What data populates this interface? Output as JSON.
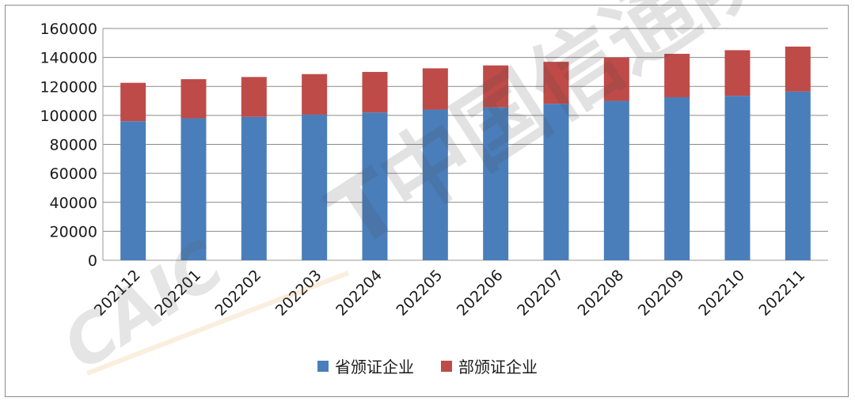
{
  "chart_data": {
    "type": "bar",
    "stacked": true,
    "categories": [
      "202112",
      "202201",
      "202202",
      "202203",
      "202204",
      "202205",
      "202206",
      "202207",
      "202208",
      "202209",
      "202210",
      "202211"
    ],
    "series": [
      {
        "name": "省颁证企业",
        "color": "#4a7ebb",
        "values": [
          96000,
          98000,
          99000,
          100500,
          102000,
          104000,
          105500,
          108000,
          110000,
          112500,
          113500,
          116500
        ]
      },
      {
        "name": "部颁证企业",
        "color": "#be4b48",
        "values": [
          26500,
          27000,
          27500,
          28000,
          28000,
          28500,
          29000,
          29000,
          30000,
          30000,
          31500,
          31000
        ]
      }
    ],
    "yticks": [
      "0",
      "20000",
      "40000",
      "60000",
      "80000",
      "100000",
      "120000",
      "140000",
      "160000"
    ],
    "ylim": [
      0,
      160000
    ],
    "legend_position": "bottom",
    "grid": true
  },
  "watermark": {
    "text": "CAICT中国信通院"
  }
}
